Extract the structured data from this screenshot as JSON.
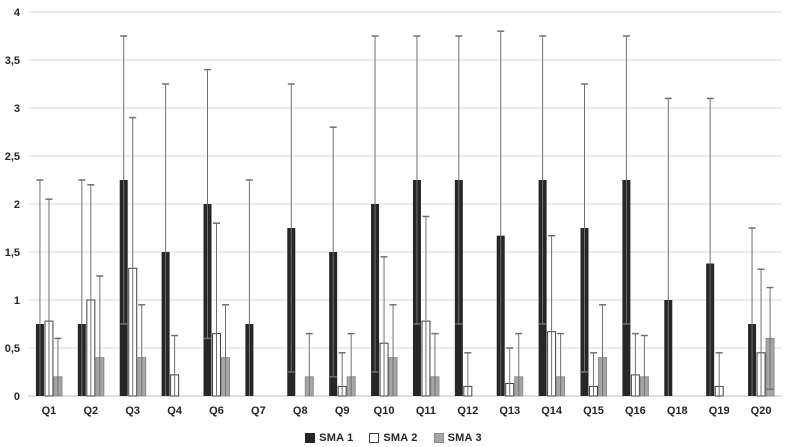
{
  "chart_data": {
    "type": "bar",
    "title": "",
    "xlabel": "",
    "ylabel": "",
    "ylim": [
      0,
      4
    ],
    "grid": true,
    "legend_position": "bottom-center",
    "yticks": [
      "0",
      "0,5",
      "1",
      "1,5",
      "2",
      "2,5",
      "3",
      "3,5",
      "4"
    ],
    "ytick_values": [
      0,
      0.5,
      1,
      1.5,
      2,
      2.5,
      3,
      3.5,
      4
    ],
    "categories": [
      "Q1",
      "Q2",
      "Q3",
      "Q4",
      "Q6",
      "Q7",
      "Q8",
      "Q9",
      "Q10",
      "Q11",
      "Q12",
      "Q13",
      "Q14",
      "Q15",
      "Q16",
      "Q18",
      "Q19",
      "Q20"
    ],
    "error_bars": "symmetric-clipped-at-zero",
    "series": [
      {
        "name": "SMA 1",
        "fill": "#262626",
        "stroke": null,
        "values": [
          0.75,
          0.75,
          2.25,
          1.5,
          2.0,
          0.75,
          1.75,
          1.5,
          2.0,
          2.25,
          2.25,
          1.67,
          2.25,
          1.75,
          2.25,
          1.0,
          1.38,
          0.75
        ],
        "whisker_top": [
          2.25,
          2.25,
          3.75,
          3.25,
          3.4,
          2.25,
          3.25,
          2.8,
          3.75,
          3.75,
          3.75,
          3.8,
          3.75,
          3.25,
          3.75,
          3.1,
          3.1,
          1.75
        ]
      },
      {
        "name": "SMA 2",
        "fill": "#ffffff",
        "stroke": "#404040",
        "values": [
          0.78,
          1.0,
          1.33,
          0.22,
          0.65,
          0,
          0,
          0.1,
          0.55,
          0.78,
          0.1,
          0.13,
          0.67,
          0.1,
          0.22,
          0,
          0.1,
          0.45
        ],
        "whisker_top": [
          2.05,
          2.2,
          2.9,
          0.63,
          1.8,
          null,
          null,
          0.45,
          1.45,
          1.87,
          0.45,
          0.5,
          1.67,
          0.45,
          0.65,
          null,
          0.45,
          1.32
        ]
      },
      {
        "name": "SMA 3",
        "fill": "#a6a6a6",
        "stroke": "#8c8c8c",
        "values": [
          0.2,
          0.4,
          0.4,
          0,
          0.4,
          0,
          0.2,
          0.2,
          0.4,
          0.2,
          0,
          0.2,
          0.2,
          0.4,
          0.2,
          0,
          0,
          0.6
        ],
        "whisker_top": [
          0.6,
          1.25,
          0.95,
          null,
          0.95,
          null,
          0.65,
          0.65,
          0.95,
          0.65,
          null,
          0.65,
          0.65,
          0.95,
          0.63,
          null,
          null,
          1.13
        ]
      }
    ],
    "colors": {
      "gridline": "#d9d9d9",
      "axis_line": "#bfbfbf",
      "error_bar": "#707070",
      "tick_label": "#262626"
    }
  }
}
